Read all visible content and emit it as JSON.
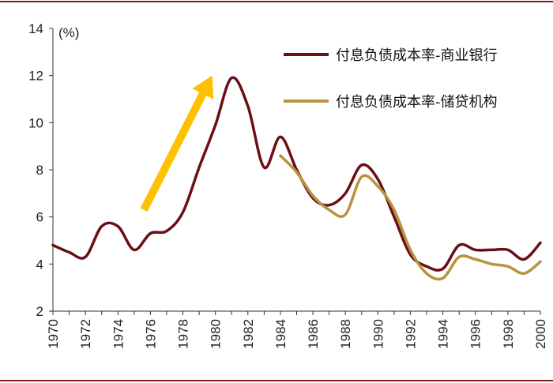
{
  "chart_data": {
    "type": "line",
    "ylabel": "(%)",
    "ylim": [
      2,
      14
    ],
    "yticks": [
      2,
      4,
      6,
      8,
      10,
      12,
      14
    ],
    "xlim": [
      1970,
      2000
    ],
    "xticks": [
      "1970",
      "1972",
      "1974",
      "1976",
      "1978",
      "1980",
      "1982",
      "1984",
      "1986",
      "1988",
      "1990",
      "1992",
      "1994",
      "1996",
      "1998",
      "2000"
    ],
    "series": [
      {
        "name": "付息负债成本率-商业银行",
        "color": "#6b0f17",
        "x": [
          1970,
          1971,
          1972,
          1973,
          1974,
          1975,
          1976,
          1977,
          1978,
          1979,
          1980,
          1981,
          1982,
          1983,
          1984,
          1985,
          1986,
          1987,
          1988,
          1989,
          1990,
          1991,
          1992,
          1993,
          1994,
          1995,
          1996,
          1997,
          1998,
          1999,
          2000
        ],
        "values": [
          4.8,
          4.5,
          4.3,
          5.6,
          5.6,
          4.6,
          5.3,
          5.4,
          6.2,
          8.1,
          9.9,
          11.9,
          10.7,
          8.1,
          9.4,
          8.0,
          6.8,
          6.5,
          7.0,
          8.2,
          7.6,
          6.0,
          4.4,
          3.9,
          3.8,
          4.8,
          4.6,
          4.6,
          4.6,
          4.2,
          4.9
        ]
      },
      {
        "name": "付息负债成本率-储贷机构",
        "color": "#b8933f",
        "x": [
          1984,
          1985,
          1986,
          1987,
          1988,
          1989,
          1990,
          1991,
          1992,
          1993,
          1994,
          1995,
          1996,
          1997,
          1998,
          1999,
          2000
        ],
        "values": [
          8.6,
          7.9,
          6.9,
          6.3,
          6.1,
          7.7,
          7.3,
          6.3,
          4.6,
          3.6,
          3.4,
          4.3,
          4.2,
          4.0,
          3.9,
          3.6,
          4.1
        ]
      }
    ],
    "annotation": {
      "type": "arrow",
      "color": "#ffc000",
      "from": [
        1975.6,
        6.3
      ],
      "to": [
        1979.8,
        12.0
      ]
    }
  }
}
